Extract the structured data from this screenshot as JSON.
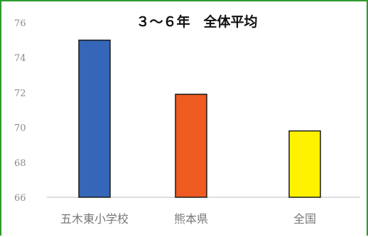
{
  "chart_data": {
    "type": "bar",
    "title": "３～６年　全体平均",
    "categories": [
      "五木東小学校",
      "熊本県",
      "全国"
    ],
    "values": [
      75.0,
      71.9,
      69.8
    ],
    "colors": [
      "#3566b8",
      "#ef5b21",
      "#fff200"
    ],
    "ylim": [
      66,
      76
    ],
    "yticks": [
      66,
      68,
      70,
      72,
      74,
      76
    ],
    "xlabel": "",
    "ylabel": "",
    "grid": false,
    "legend": "none"
  }
}
